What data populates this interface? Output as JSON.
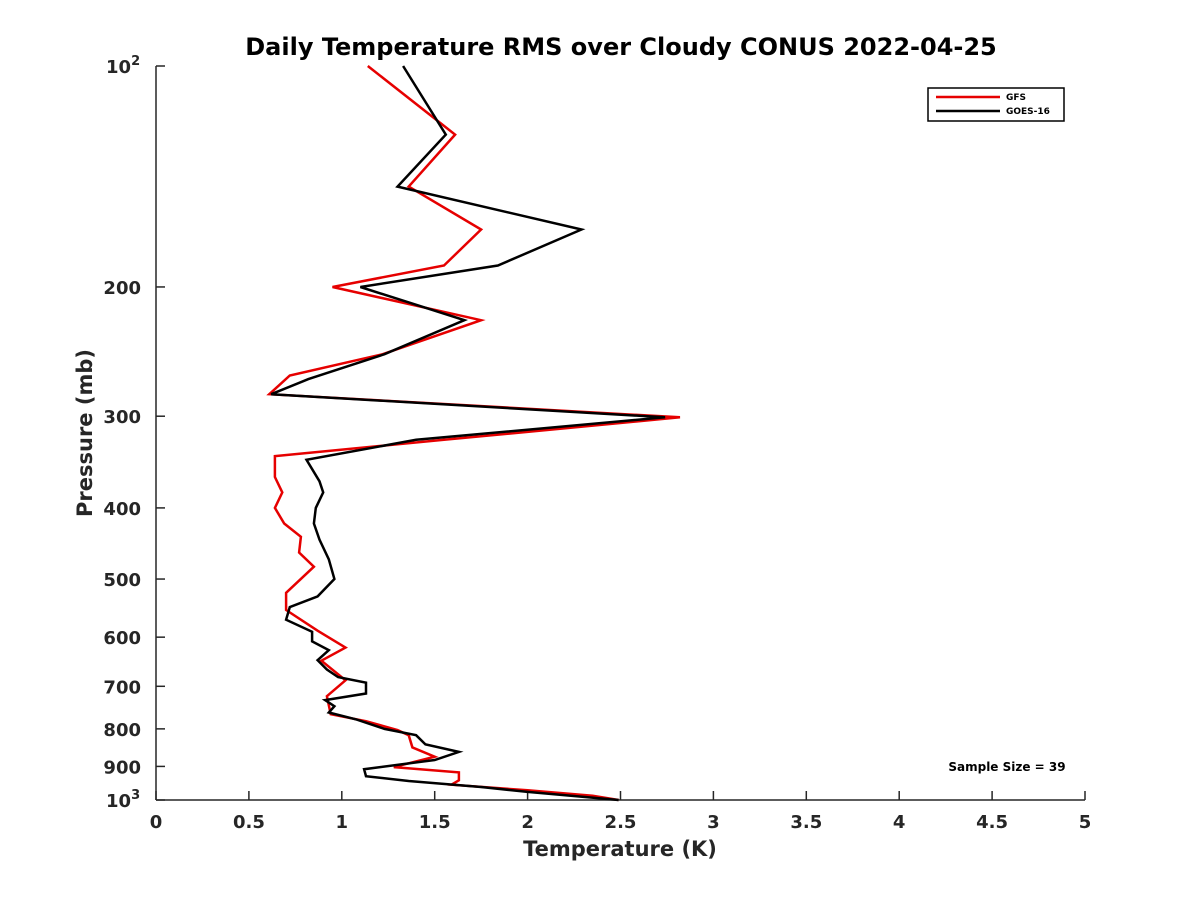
{
  "chart_data": {
    "type": "line",
    "title": "Daily Temperature RMS over Cloudy CONUS 2022-04-25",
    "xlabel": "Temperature (K)",
    "ylabel": "Pressure (mb)",
    "xlim": [
      0,
      5
    ],
    "ylim": [
      100,
      1000
    ],
    "y_scale": "log",
    "y_reversed": true,
    "grid": false,
    "legend_position": "top-right",
    "x_ticks": [
      "0",
      "0.5",
      "1",
      "1.5",
      "2",
      "2.5",
      "3",
      "3.5",
      "4",
      "4.5",
      "5"
    ],
    "x_tick_values": [
      0,
      0.5,
      1,
      1.5,
      2,
      2.5,
      3,
      3.5,
      4,
      4.5,
      5
    ],
    "y_ticks": [
      {
        "value": 100,
        "base": "10",
        "exp": "2"
      },
      {
        "value": 200,
        "label": "200"
      },
      {
        "value": 300,
        "label": "300"
      },
      {
        "value": 400,
        "label": "400"
      },
      {
        "value": 500,
        "label": "500"
      },
      {
        "value": 600,
        "label": "600"
      },
      {
        "value": 700,
        "label": "700"
      },
      {
        "value": 800,
        "label": "800"
      },
      {
        "value": 900,
        "label": "900"
      },
      {
        "value": 1000,
        "base": "10",
        "exp": "3"
      }
    ],
    "annotation": "Sample Size = 39",
    "series": [
      {
        "name": "GFS",
        "color": "#e60000",
        "x": [
          1.14,
          1.61,
          1.36,
          1.75,
          1.55,
          0.95,
          1.75,
          1.22,
          0.72,
          0.61,
          2.82,
          1.55,
          0.64,
          0.64,
          0.68,
          0.64,
          0.69,
          0.78,
          0.77,
          0.85,
          0.7,
          0.7,
          0.87,
          1.02,
          0.89,
          1.02,
          0.92,
          0.94,
          1.13,
          1.3,
          1.36,
          1.38,
          1.5,
          1.28,
          1.63,
          1.63,
          1.59,
          2.0,
          2.35,
          2.49
        ],
        "y": [
          100,
          124,
          146,
          167,
          187,
          200,
          222,
          247,
          264,
          280,
          301,
          323,
          340,
          363,
          381,
          400,
          420,
          438,
          460,
          481,
          522,
          551,
          588,
          620,
          646,
          687,
          722,
          764,
          781,
          803,
          816,
          848,
          873,
          902,
          917,
          940,
          953,
          970,
          987,
          1000
        ]
      },
      {
        "name": "GOES-16",
        "color": "#000000",
        "x": [
          1.33,
          1.56,
          1.3,
          2.29,
          1.84,
          1.1,
          1.66,
          1.23,
          0.82,
          0.62,
          2.74,
          1.4,
          0.81,
          0.88,
          0.9,
          0.86,
          0.85,
          0.88,
          0.93,
          0.96,
          0.87,
          0.72,
          0.7,
          0.84,
          0.84,
          0.93,
          0.87,
          0.92,
          0.98,
          1.13,
          1.13,
          0.91,
          0.96,
          0.93,
          1.08,
          1.23,
          1.4,
          1.45,
          1.63,
          1.5,
          1.12,
          1.13,
          1.36,
          1.75,
          2.0,
          2.49
        ],
        "y": [
          100,
          124,
          146,
          167,
          187,
          200,
          222,
          247,
          267,
          280,
          301,
          323,
          344,
          368,
          381,
          400,
          420,
          442,
          470,
          500,
          528,
          546,
          568,
          590,
          608,
          625,
          645,
          664,
          680,
          692,
          716,
          731,
          745,
          760,
          777,
          800,
          816,
          840,
          860,
          882,
          908,
          928,
          942,
          960,
          975,
          1000
        ]
      }
    ]
  }
}
